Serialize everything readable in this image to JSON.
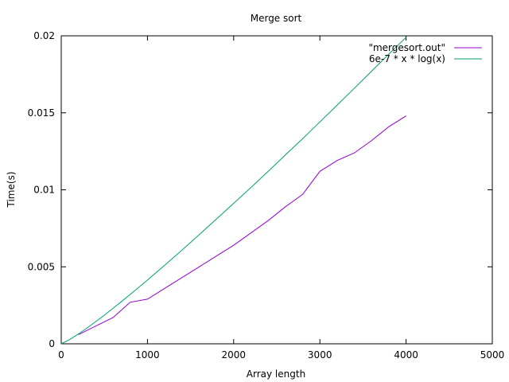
{
  "chart_data": {
    "type": "line",
    "title": "Merge sort",
    "xlabel": "Array length",
    "ylabel": "Time(s)",
    "xlim": [
      0,
      5000
    ],
    "ylim": [
      0,
      0.02
    ],
    "xticks": [
      0,
      1000,
      2000,
      3000,
      4000,
      5000
    ],
    "xtick_labels": [
      "0",
      "1000",
      "2000",
      "3000",
      "4000",
      "5000"
    ],
    "yticks": [
      0,
      0.005,
      0.01,
      0.015,
      0.02
    ],
    "ytick_labels": [
      "0",
      "0.005",
      "0.01",
      "0.015",
      "0.02"
    ],
    "grid": false,
    "legend_position": "top-right",
    "series": [
      {
        "name": "\"mergesort.out\"",
        "color": "#9400d3",
        "x": [
          200,
          400,
          600,
          800,
          1000,
          1200,
          1400,
          1600,
          1800,
          2000,
          2200,
          2400,
          2600,
          2800,
          3000,
          3200,
          3400,
          3600,
          3800,
          4000
        ],
        "y": [
          0.0006,
          0.00115,
          0.0017,
          0.0027,
          0.0029,
          0.0036,
          0.0043,
          0.005,
          0.0057,
          0.0064,
          0.0072,
          0.008,
          0.0089,
          0.0097,
          0.0112,
          0.0119,
          0.0124,
          0.0132,
          0.0141,
          0.0148
        ]
      },
      {
        "name": "6e-7 * x * log(x)",
        "color": "#009e73",
        "x": [
          0,
          100,
          200,
          300,
          400,
          500,
          600,
          700,
          800,
          900,
          1000,
          1200,
          1400,
          1600,
          1800,
          2000,
          2200,
          2400,
          2600,
          2800,
          3000,
          3200,
          3400,
          3600,
          3800,
          4000
        ],
        "y": [
          0,
          0.00028,
          0.00064,
          0.00103,
          0.00144,
          0.00186,
          0.0023,
          0.00275,
          0.00321,
          0.00367,
          0.00414,
          0.0051,
          0.00609,
          0.00708,
          0.0081,
          0.00912,
          0.01015,
          0.0112,
          0.01226,
          0.01332,
          0.01441,
          0.0155,
          0.0166,
          0.0177,
          0.01881,
          0.0199
        ]
      }
    ]
  }
}
